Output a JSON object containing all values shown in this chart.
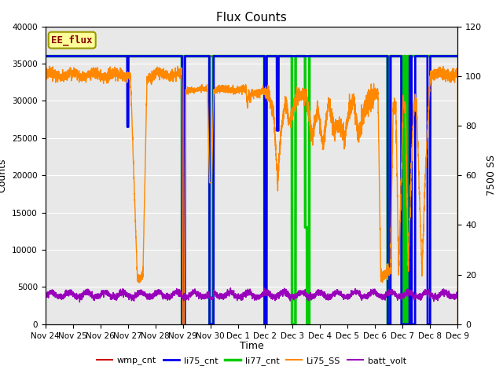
{
  "title": "Flux Counts",
  "xlabel": "Time",
  "ylabel_left": "Counts",
  "ylabel_right": "7500 SS",
  "left_ylim": [
    0,
    40000
  ],
  "right_ylim": [
    0,
    120
  ],
  "plot_bg": "#e8e8e8",
  "fig_bg": "#ffffff",
  "annotation_text": "EE_flux",
  "annotation_color": "#8B0000",
  "annotation_bg": "#ffff99",
  "annotation_border": "#999900",
  "grid_color": "#ffffff",
  "tick_labels": [
    "Nov 24",
    "Nov 25",
    "Nov 26",
    "Nov 27",
    "Nov 28",
    "Nov 29",
    "Nov 30",
    "Dec 1",
    "Dec 2",
    "Dec 3",
    "Dec 4",
    "Dec 5",
    "Dec 6",
    "Dec 7",
    "Dec 8",
    "Dec 9"
  ],
  "series_colors": {
    "wmp_cnt": "#cc0000",
    "li75_cnt": "#0000ee",
    "li77_cnt": "#00cc00",
    "Li75_SS": "#ff8800",
    "batt_volt": "#9900bb"
  },
  "right_yticks": [
    0,
    20,
    40,
    60,
    80,
    100,
    120
  ],
  "left_yticks": [
    0,
    5000,
    10000,
    15000,
    20000,
    25000,
    30000,
    35000,
    40000
  ]
}
